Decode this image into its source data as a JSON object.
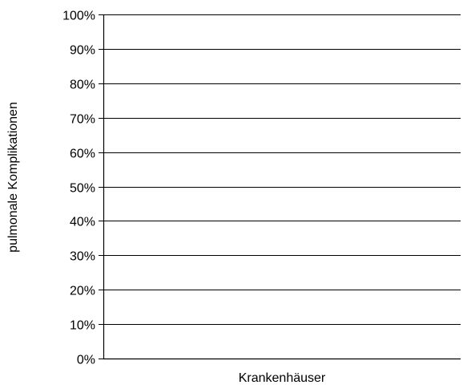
{
  "chart_data": {
    "type": "bar",
    "title": "",
    "xlabel": "Krankenhäuser",
    "ylabel": "pulmonale Komplikationen",
    "ylim": [
      0,
      100
    ],
    "y_ticks": [
      0,
      10,
      20,
      30,
      40,
      50,
      60,
      70,
      80,
      90,
      100
    ],
    "y_tick_labels": [
      "0%",
      "10%",
      "20%",
      "30%",
      "40%",
      "50%",
      "60%",
      "70%",
      "80%",
      "90%",
      "100%"
    ],
    "categories": [],
    "series": [],
    "grid": true,
    "legend": "none"
  }
}
